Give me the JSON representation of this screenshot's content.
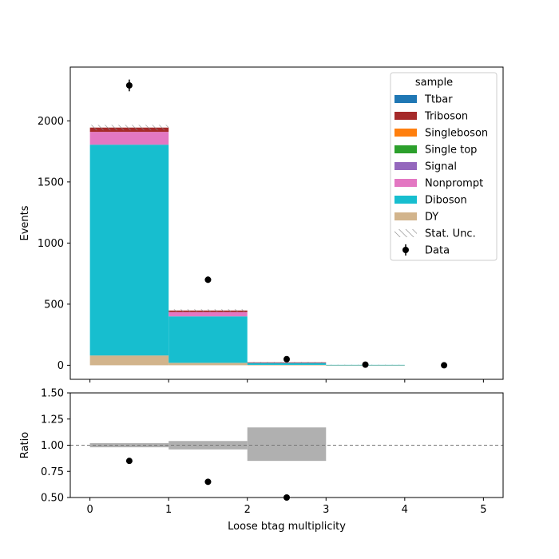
{
  "chart_data": [
    {
      "type": "bar",
      "stacked": true,
      "ylabel": "Events",
      "xlim": [
        -0.25,
        5.25
      ],
      "ylim": [
        -115,
        2440
      ],
      "yticks": [
        0,
        500,
        1000,
        1500,
        2000
      ],
      "bin_edges": [
        0,
        1,
        2,
        3,
        4,
        5
      ],
      "series": [
        {
          "name": "DY",
          "color": "#d2b48c",
          "values": [
            80,
            20,
            3,
            0.5,
            0
          ]
        },
        {
          "name": "Diboson",
          "color": "#17becf",
          "values": [
            1725,
            380,
            17,
            3,
            0
          ]
        },
        {
          "name": "Nonprompt",
          "color": "#e377c2",
          "values": [
            105,
            35,
            2,
            0,
            0
          ]
        },
        {
          "name": "Signal",
          "color": "#9467bd",
          "values": [
            0,
            0,
            0,
            0,
            0
          ]
        },
        {
          "name": "Single top",
          "color": "#2ca02c",
          "values": [
            0,
            0,
            0,
            0,
            0
          ]
        },
        {
          "name": "Singleboson",
          "color": "#ff7f0e",
          "values": [
            0,
            0,
            0,
            0,
            0
          ]
        },
        {
          "name": "Triboson",
          "color": "#a52a2a",
          "values": [
            35,
            13,
            2,
            0,
            0
          ]
        },
        {
          "name": "Ttbar",
          "color": "#1f77b4",
          "values": [
            0,
            0,
            0,
            0,
            0
          ]
        }
      ],
      "stat_unc": [
        22,
        10,
        3,
        1,
        0
      ],
      "data": {
        "name": "Data",
        "x": [
          0.5,
          1.5,
          2.5,
          3.5,
          4.5
        ],
        "y": [
          2290,
          700,
          50,
          5,
          0
        ],
        "yerr": [
          48,
          26,
          7,
          2,
          0
        ]
      },
      "legend": {
        "title": "sample",
        "position": "upper right",
        "entries": [
          {
            "label": "Ttbar",
            "kind": "patch",
            "color": "#1f77b4"
          },
          {
            "label": "Triboson",
            "kind": "patch",
            "color": "#a52a2a"
          },
          {
            "label": "Singleboson",
            "kind": "patch",
            "color": "#ff7f0e"
          },
          {
            "label": "Single top",
            "kind": "patch",
            "color": "#2ca02c"
          },
          {
            "label": "Signal",
            "kind": "patch",
            "color": "#9467bd"
          },
          {
            "label": "Nonprompt",
            "kind": "patch",
            "color": "#e377c2"
          },
          {
            "label": "Diboson",
            "kind": "patch",
            "color": "#17becf"
          },
          {
            "label": "DY",
            "kind": "patch",
            "color": "#d2b48c"
          },
          {
            "label": "Stat. Unc.",
            "kind": "hatch",
            "color": "#888888"
          },
          {
            "label": "Data",
            "kind": "errorbar",
            "color": "#000000"
          }
        ]
      }
    },
    {
      "type": "scatter",
      "xlabel": "Loose btag multiplicity",
      "ylabel": "Ratio",
      "xlim": [
        -0.25,
        5.25
      ],
      "ylim": [
        0.5,
        1.5
      ],
      "yticks": [
        "0.50",
        "0.75",
        "1.00",
        "1.25",
        "1.50"
      ],
      "xticks": [
        "0",
        "1",
        "2",
        "3",
        "4",
        "5"
      ],
      "reference_line": 1.0,
      "unc_band": [
        {
          "x0": 0,
          "x1": 1,
          "lo": 0.98,
          "hi": 1.02
        },
        {
          "x0": 1,
          "x1": 2,
          "lo": 0.96,
          "hi": 1.04
        },
        {
          "x0": 2,
          "x1": 3,
          "lo": 0.85,
          "hi": 1.17
        }
      ],
      "points": {
        "x": [
          0.5,
          1.5,
          2.5
        ],
        "y": [
          0.85,
          0.65,
          0.5
        ]
      }
    }
  ]
}
